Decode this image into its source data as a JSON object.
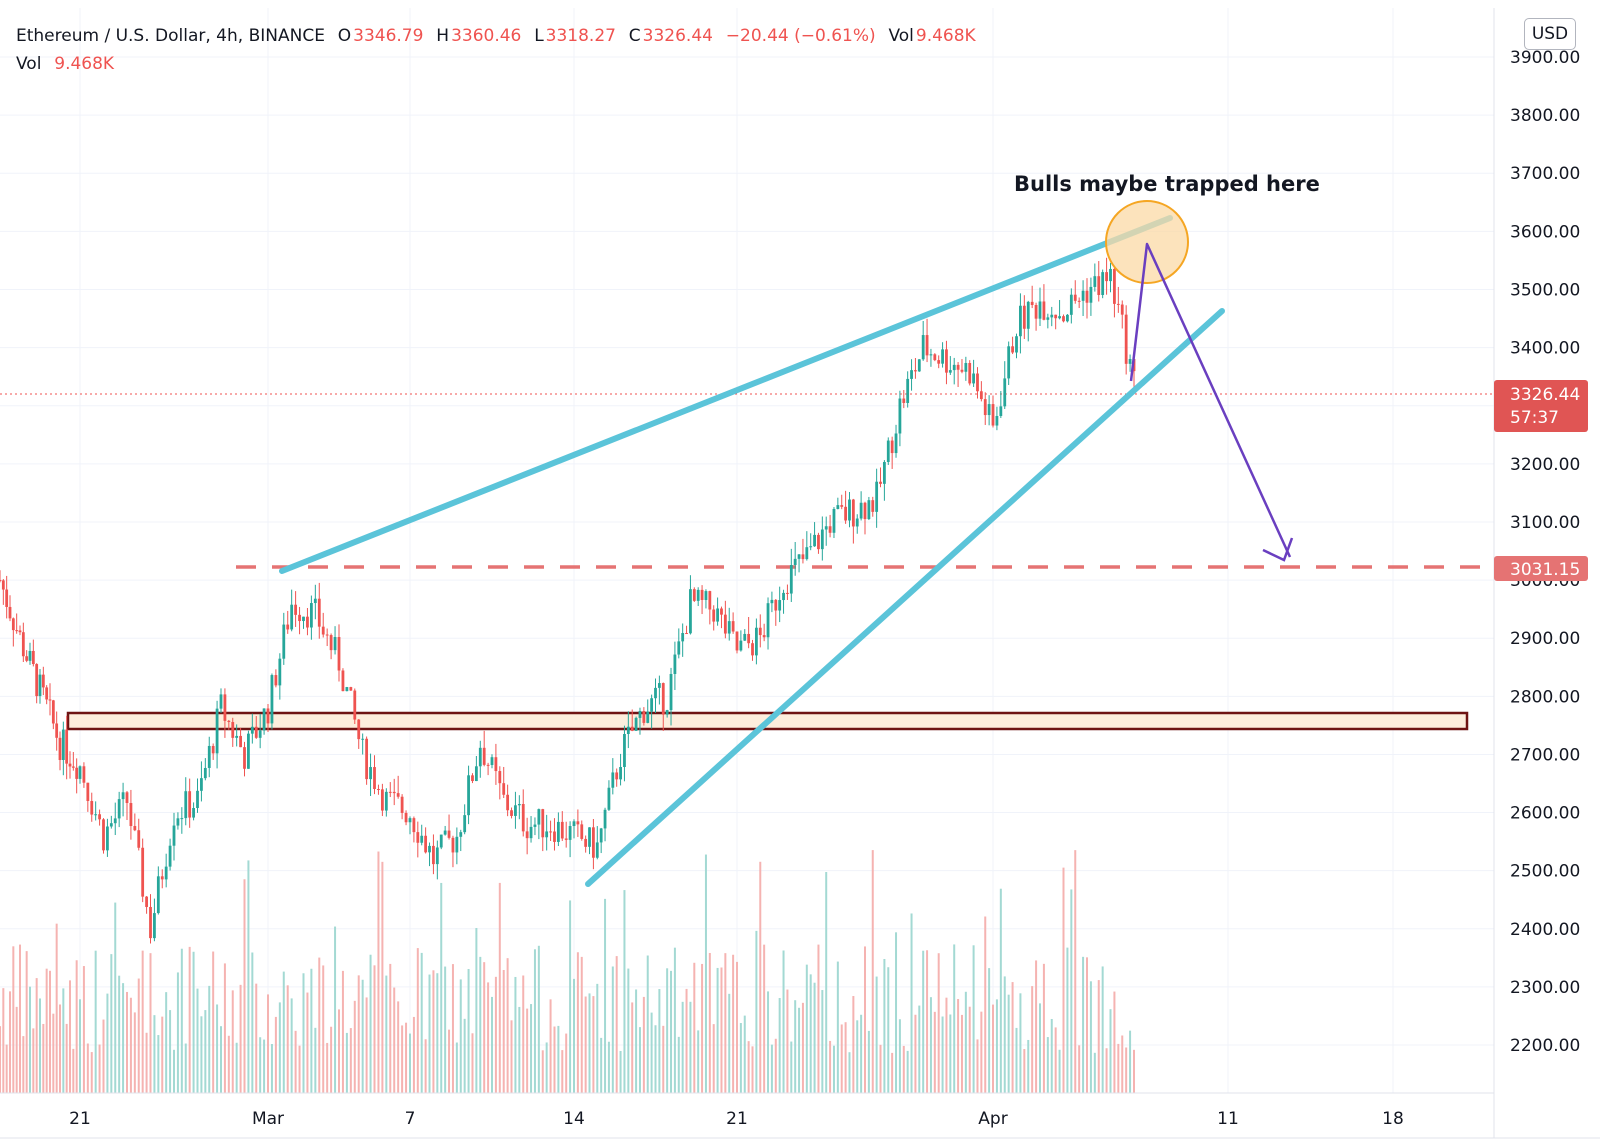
{
  "header": {
    "symbol": "Ethereum / U.S. Dollar, 4h, BINANCE",
    "o_label": "O",
    "o_value": "3346.79",
    "h_label": "H",
    "h_value": "3360.46",
    "l_label": "L",
    "l_value": "3318.27",
    "c_label": "C",
    "c_value": "3326.44",
    "change": "−20.44 (−0.61%)",
    "vol_label": "Vol",
    "vol_value": "9.468K",
    "vol_row_label": "Vol",
    "vol_row_value": "9.468K"
  },
  "currency_button": "USD",
  "annotation_text": "Bulls maybe trapped here",
  "price_tag": {
    "value": "3326.44",
    "countdown": "57:37"
  },
  "level_tag": {
    "value": "3031.15"
  },
  "colors": {
    "up": "#26a69a",
    "down": "#ef5350",
    "trendline": "#5bc4d9",
    "arrow": "#6a3fc0",
    "zone_fill": "#fdeedd",
    "zone_border": "#6e1414",
    "circle_fill": "#fbd9a6",
    "circle_stroke": "#f5a623"
  },
  "chart_data": {
    "type": "candlestick",
    "symbol": "Ethereum / U.S. Dollar",
    "interval": "4h",
    "exchange": "BINANCE",
    "y_axis": {
      "ticks": [
        "3900.00",
        "3800.00",
        "3700.00",
        "3600.00",
        "3500.00",
        "3400.00",
        "3300.00",
        "3200.00",
        "3100.00",
        "3000.00",
        "2900.00",
        "2800.00",
        "2700.00",
        "2600.00",
        "2500.00",
        "2400.00",
        "2300.00",
        "2200.00"
      ],
      "range": [
        2140,
        3940
      ]
    },
    "x_axis": {
      "ticks": [
        "21",
        "Mar",
        "7",
        "14",
        "21",
        "Apr",
        "11",
        "18"
      ]
    },
    "price_path": [
      [
        "Feb 17",
        3000
      ],
      [
        "Feb 18",
        2900
      ],
      [
        "Feb 20",
        2720
      ],
      [
        "Feb 21",
        2680
      ],
      [
        "Feb 22",
        2560
      ],
      [
        "Feb 23",
        2620
      ],
      [
        "Feb 24",
        2400
      ],
      [
        "Feb 25",
        2600
      ],
      [
        "Feb 26",
        2620
      ],
      [
        "Feb 27",
        2780
      ],
      [
        "Feb 28",
        2700
      ],
      [
        "Mar 1",
        2780
      ],
      [
        "Mar 2",
        2960
      ],
      [
        "Mar 3",
        2940
      ],
      [
        "Mar 4",
        2860
      ],
      [
        "Mar 5",
        2700
      ],
      [
        "Mar 6",
        2620
      ],
      [
        "Mar 7",
        2600
      ],
      [
        "Mar 8",
        2520
      ],
      [
        "Mar 9",
        2560
      ],
      [
        "Mar 10",
        2720
      ],
      [
        "Mar 11",
        2620
      ],
      [
        "Mar 12",
        2580
      ],
      [
        "Mar 13",
        2580
      ],
      [
        "Mar 14",
        2560
      ],
      [
        "Mar 15",
        2540
      ],
      [
        "Mar 16",
        2700
      ],
      [
        "Mar 17",
        2780
      ],
      [
        "Mar 18",
        2800
      ],
      [
        "Mar 19",
        2960
      ],
      [
        "Mar 20",
        2950
      ],
      [
        "Mar 21",
        2880
      ],
      [
        "Mar 22",
        2900
      ],
      [
        "Mar 23",
        3000
      ],
      [
        "Mar 24",
        3040
      ],
      [
        "Mar 25",
        3100
      ],
      [
        "Mar 26",
        3120
      ],
      [
        "Mar 27",
        3140
      ],
      [
        "Mar 28",
        3300
      ],
      [
        "Mar 29",
        3400
      ],
      [
        "Mar 30",
        3380
      ],
      [
        "Mar 31",
        3360
      ],
      [
        "Apr 1",
        3260
      ],
      [
        "Apr 2",
        3440
      ],
      [
        "Apr 3",
        3480
      ],
      [
        "Apr 4",
        3460
      ],
      [
        "Apr 5",
        3500
      ],
      [
        "Apr 6",
        3520
      ],
      [
        "Apr 7",
        3340
      ]
    ],
    "last_close": 3326.44,
    "last_open": 3346.79,
    "last_high": 3360.46,
    "last_low": 3318.27,
    "horizontal_level": 3031.15,
    "support_zone": [
      2760,
      2785
    ],
    "trendlines": [
      {
        "name": "upper",
        "from": [
          "Mar 2",
          3030
        ],
        "to": [
          "Apr 8",
          3620
        ]
      },
      {
        "name": "lower",
        "from": [
          "Mar 15",
          2490
        ],
        "to": [
          "Apr 10",
          3470
        ]
      }
    ],
    "projection_arrow": {
      "from": [
        "Apr 7",
        3340
      ],
      "via": [
        "Apr 8",
        3580
      ],
      "to": [
        "Apr 13",
        3040
      ]
    },
    "volume_visible": true
  }
}
